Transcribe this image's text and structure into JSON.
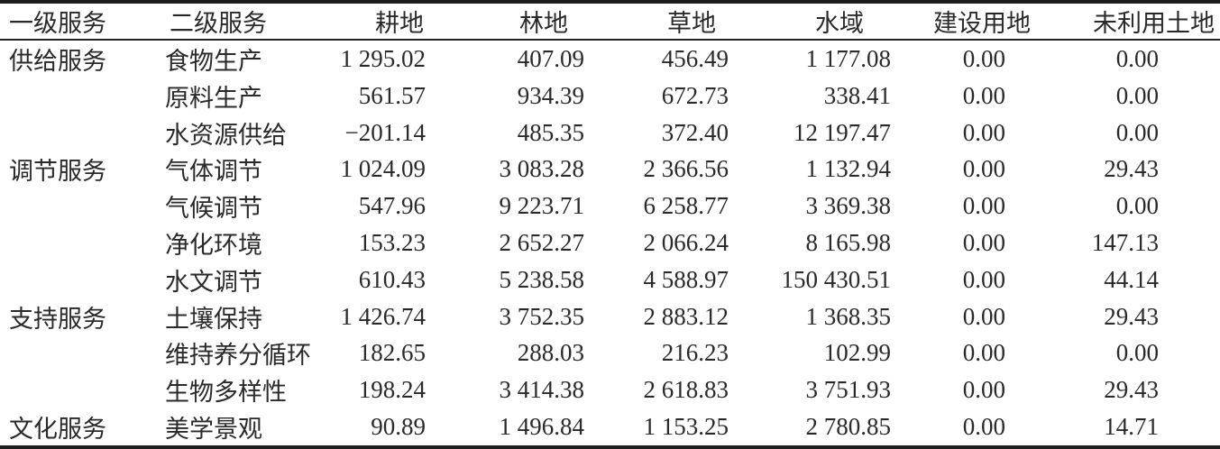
{
  "table": {
    "columns": [
      "一级服务",
      "二级服务",
      "耕地",
      "林地",
      "草地",
      "水域",
      "建设用地",
      "未利用土地"
    ],
    "rows": [
      {
        "group": "供给服务",
        "service": "食物生产",
        "values": [
          "1 295.02",
          "407.09",
          "456.49",
          "1 177.08",
          "0.00",
          "0.00"
        ]
      },
      {
        "group": "",
        "service": "原料生产",
        "values": [
          "561.57",
          "934.39",
          "672.73",
          "338.41",
          "0.00",
          "0.00"
        ]
      },
      {
        "group": "",
        "service": "水资源供给",
        "values": [
          "−201.14",
          "485.35",
          "372.40",
          "12 197.47",
          "0.00",
          "0.00"
        ]
      },
      {
        "group": "调节服务",
        "service": "气体调节",
        "values": [
          "1 024.09",
          "3 083.28",
          "2 366.56",
          "1 132.94",
          "0.00",
          "29.43"
        ]
      },
      {
        "group": "",
        "service": "气候调节",
        "values": [
          "547.96",
          "9 223.71",
          "6 258.77",
          "3 369.38",
          "0.00",
          "0.00"
        ]
      },
      {
        "group": "",
        "service": "净化环境",
        "values": [
          "153.23",
          "2 652.27",
          "2 066.24",
          "8 165.98",
          "0.00",
          "147.13"
        ]
      },
      {
        "group": "",
        "service": "水文调节",
        "values": [
          "610.43",
          "5 238.58",
          "4 588.97",
          "150 430.51",
          "0.00",
          "44.14"
        ]
      },
      {
        "group": "支持服务",
        "service": "土壤保持",
        "values": [
          "1 426.74",
          "3 752.35",
          "2 883.12",
          "1 368.35",
          "0.00",
          "29.43"
        ]
      },
      {
        "group": "",
        "service": "维持养分循环",
        "values": [
          "182.65",
          "288.03",
          "216.23",
          "102.99",
          "0.00",
          "0.00"
        ]
      },
      {
        "group": "",
        "service": "生物多样性",
        "values": [
          "198.24",
          "3 414.38",
          "2 618.83",
          "3 751.93",
          "0.00",
          "29.43"
        ]
      },
      {
        "group": "文化服务",
        "service": "美学景观",
        "values": [
          "90.89",
          "1 496.84",
          "1 153.25",
          "2 780.85",
          "0.00",
          "14.71"
        ]
      }
    ],
    "colors": {
      "text": "#2a2a2a",
      "rule": "#1e1e1e",
      "background": "#ffffff"
    }
  }
}
